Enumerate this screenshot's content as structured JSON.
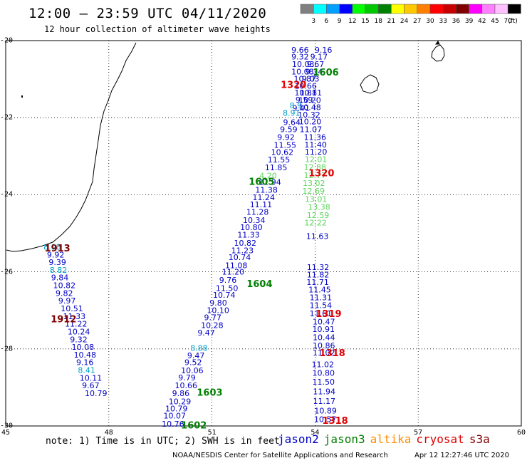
{
  "header": {
    "title": "12:00 – 23:59 UTC 04/11/2020",
    "subtitle": "12 hour collection of altimeter wave heights"
  },
  "colorbar": {
    "unit": "(ft)",
    "bins": [
      {
        "color": "#808080",
        "label": "3"
      },
      {
        "color": "#00ffff",
        "label": "6"
      },
      {
        "color": "#00a0ff",
        "label": "9"
      },
      {
        "color": "#0000ff",
        "label": "12"
      },
      {
        "color": "#00ff00",
        "label": "15"
      },
      {
        "color": "#00c800",
        "label": "18"
      },
      {
        "color": "#008000",
        "label": "21"
      },
      {
        "color": "#ffff00",
        "label": "24"
      },
      {
        "color": "#ffc800",
        "label": "27"
      },
      {
        "color": "#ff8000",
        "label": "30"
      },
      {
        "color": "#ff0000",
        "label": "33"
      },
      {
        "color": "#c80000",
        "label": "36"
      },
      {
        "color": "#800000",
        "label": "39"
      },
      {
        "color": "#ff00ff",
        "label": "42"
      },
      {
        "color": "#ff80ff",
        "label": "45"
      },
      {
        "color": "#ffc0ff",
        "label": "70"
      },
      {
        "color": "#000000",
        "label": ""
      }
    ]
  },
  "map": {
    "lon_range": [
      45,
      60
    ],
    "lat_range": [
      -30,
      -20
    ],
    "x_ticks": [
      "45",
      "48",
      "51",
      "54",
      "57",
      "60"
    ],
    "y_ticks": [
      "-20",
      "-22",
      "-24",
      "-26",
      "-28",
      "-30"
    ],
    "colors": {
      "jason2": "#0000c8",
      "jason3": "#008000",
      "altika": "#ff8c00",
      "cryosat": "#e00000",
      "s3a": "#800000",
      "light_green": "#5cd65c",
      "cyan": "#00a0c8"
    }
  },
  "chart_data": {
    "type": "scatter",
    "title": "12:00 – 23:59 UTC 04/11/2020",
    "subtitle": "12 hour collection of altimeter wave heights",
    "xlabel": "",
    "ylabel": "",
    "xlim": [
      45,
      60
    ],
    "ylim": [
      -30,
      -20
    ],
    "grid": true,
    "tracks": [
      {
        "color": "jason2",
        "points": [
          {
            "lon": 49.54,
            "lat": -29.94,
            "value": "10.76"
          },
          {
            "lon": 49.59,
            "lat": -29.73,
            "value": "10.07"
          },
          {
            "lon": 49.64,
            "lat": -29.55,
            "value": "10.79"
          },
          {
            "lon": 49.74,
            "lat": -29.36,
            "value": "10.29"
          },
          {
            "lon": 49.84,
            "lat": -29.15,
            "value": "9.86"
          },
          {
            "lon": 49.92,
            "lat": -28.95,
            "value": "10.66"
          },
          {
            "lon": 50.02,
            "lat": -28.74,
            "value": "9.79"
          },
          {
            "lon": 50.1,
            "lat": -28.56,
            "value": "10.06"
          },
          {
            "lon": 50.2,
            "lat": -28.35,
            "value": "9.52"
          },
          {
            "lon": 50.28,
            "lat": -28.17,
            "value": "9.47"
          },
          {
            "lon": 50.58,
            "lat": -27.58,
            "value": "9.47"
          },
          {
            "lon": 50.68,
            "lat": -27.38,
            "value": "10.28"
          },
          {
            "lon": 50.77,
            "lat": -27.18,
            "value": "9.77"
          },
          {
            "lon": 50.85,
            "lat": -27.0,
            "value": "10.10"
          },
          {
            "lon": 50.93,
            "lat": -26.8,
            "value": "9.80"
          },
          {
            "lon": 51.03,
            "lat": -26.6,
            "value": "10.74"
          },
          {
            "lon": 51.11,
            "lat": -26.42,
            "value": "11.50"
          },
          {
            "lon": 51.21,
            "lat": -26.21,
            "value": "9.76"
          },
          {
            "lon": 51.29,
            "lat": -26.0,
            "value": "11.20"
          },
          {
            "lon": 51.38,
            "lat": -25.83,
            "value": "11.08"
          },
          {
            "lon": 51.48,
            "lat": -25.62,
            "value": "10.74"
          },
          {
            "lon": 51.56,
            "lat": -25.44,
            "value": "11.23"
          },
          {
            "lon": 51.64,
            "lat": -25.25,
            "value": "10.82"
          },
          {
            "lon": 51.74,
            "lat": -25.04,
            "value": "11.33"
          },
          {
            "lon": 51.82,
            "lat": -24.84,
            "value": "10.80"
          },
          {
            "lon": 51.9,
            "lat": -24.66,
            "value": "10.34"
          },
          {
            "lon": 52.0,
            "lat": -24.45,
            "value": "11.28"
          },
          {
            "lon": 52.1,
            "lat": -24.25,
            "value": "11.11"
          },
          {
            "lon": 52.18,
            "lat": -24.07,
            "value": "11.24"
          },
          {
            "lon": 52.26,
            "lat": -23.87,
            "value": "11.38"
          },
          {
            "lon": 52.36,
            "lat": -23.67,
            "value": "11.94"
          },
          {
            "lon": 52.54,
            "lat": -23.29,
            "value": "11.85"
          },
          {
            "lon": 52.62,
            "lat": -23.09,
            "value": "11.55"
          },
          {
            "lon": 52.72,
            "lat": -22.89,
            "value": "10.62"
          },
          {
            "lon": 52.8,
            "lat": -22.71,
            "value": "11.55"
          },
          {
            "lon": 52.9,
            "lat": -22.5,
            "value": "9.92"
          },
          {
            "lon": 52.98,
            "lat": -22.3,
            "value": "9.59"
          },
          {
            "lon": 53.07,
            "lat": -22.12,
            "value": "9.64"
          },
          {
            "lon": 53.34,
            "lat": -21.75,
            "value": "9.41"
          },
          {
            "lon": 53.43,
            "lat": -21.53,
            "value": "9.59"
          },
          {
            "lon": 53.4,
            "lat": -21.35,
            "value": "10.81"
          },
          {
            "lon": 53.4,
            "lat": -21.17,
            "value": "10.66"
          },
          {
            "lon": 53.38,
            "lat": -20.99,
            "value": "10.87"
          },
          {
            "lon": 53.31,
            "lat": -20.8,
            "value": "10.08"
          },
          {
            "lon": 53.33,
            "lat": -20.61,
            "value": "10.03"
          },
          {
            "lon": 53.31,
            "lat": -20.42,
            "value": "9.32"
          },
          {
            "lon": 53.31,
            "lat": -20.24,
            "value": "9.66"
          }
        ]
      },
      {
        "color": "cyan",
        "points": [
          {
            "lon": 50.37,
            "lat": -27.98,
            "value": "8.88"
          },
          {
            "lon": 53.06,
            "lat": -21.88,
            "value": "8.91"
          },
          {
            "lon": 53.26,
            "lat": -21.68,
            "value": "8.9"
          }
        ]
      },
      {
        "color": "jason2",
        "points": [
          {
            "lon": 53.99,
            "lat": -20.24,
            "value": "9.16"
          },
          {
            "lon": 53.86,
            "lat": -20.42,
            "value": "9.17"
          },
          {
            "lon": 53.76,
            "lat": -20.61,
            "value": "9.67"
          },
          {
            "lon": 53.72,
            "lat": -20.8,
            "value": "9.34"
          },
          {
            "lon": 53.62,
            "lat": -20.99,
            "value": "9.03"
          },
          {
            "lon": 53.55,
            "lat": -21.35,
            "value": "10.81"
          },
          {
            "lon": 53.52,
            "lat": -21.54,
            "value": "10.20"
          },
          {
            "lon": 53.52,
            "lat": -21.73,
            "value": "10.48"
          },
          {
            "lon": 53.5,
            "lat": -21.92,
            "value": "10.32"
          },
          {
            "lon": 53.53,
            "lat": -22.1,
            "value": "10.20"
          },
          {
            "lon": 53.55,
            "lat": -22.3,
            "value": "11.07"
          },
          {
            "lon": 53.67,
            "lat": -22.5,
            "value": "11.36"
          },
          {
            "lon": 53.69,
            "lat": -22.7,
            "value": "11.40"
          },
          {
            "lon": 53.7,
            "lat": -22.88,
            "value": "11.20"
          },
          {
            "lon": 53.74,
            "lat": -25.07,
            "value": "11.63"
          },
          {
            "lon": 53.76,
            "lat": -25.88,
            "value": "11.32"
          },
          {
            "lon": 53.76,
            "lat": -26.07,
            "value": "11.82"
          },
          {
            "lon": 53.75,
            "lat": -26.27,
            "value": "11.71"
          },
          {
            "lon": 53.81,
            "lat": -26.46,
            "value": "11.45"
          },
          {
            "lon": 53.84,
            "lat": -26.66,
            "value": "11.31"
          },
          {
            "lon": 53.84,
            "lat": -26.87,
            "value": "11.54"
          },
          {
            "lon": 53.84,
            "lat": -27.08,
            "value": "11.61"
          },
          {
            "lon": 53.93,
            "lat": -27.29,
            "value": "10.47"
          },
          {
            "lon": 53.92,
            "lat": -27.49,
            "value": "10.91"
          },
          {
            "lon": 53.93,
            "lat": -27.7,
            "value": "10.44"
          },
          {
            "lon": 53.93,
            "lat": -27.91,
            "value": "10.86"
          },
          {
            "lon": 53.93,
            "lat": -28.1,
            "value": "11.02"
          },
          {
            "lon": 53.9,
            "lat": -28.4,
            "value": "11.02"
          },
          {
            "lon": 53.92,
            "lat": -28.62,
            "value": "10.80"
          },
          {
            "lon": 53.92,
            "lat": -28.85,
            "value": "11.50"
          },
          {
            "lon": 53.94,
            "lat": -29.1,
            "value": "11.94"
          },
          {
            "lon": 53.94,
            "lat": -29.35,
            "value": "11.17"
          },
          {
            "lon": 53.98,
            "lat": -29.6,
            "value": "10.89"
          },
          {
            "lon": 53.97,
            "lat": -29.82,
            "value": "10.57"
          }
        ]
      },
      {
        "color": "light_green",
        "points": [
          {
            "lon": 52.38,
            "lat": -23.5,
            "value": "4.20"
          },
          {
            "lon": 53.7,
            "lat": -23.08,
            "value": "12.01"
          },
          {
            "lon": 53.67,
            "lat": -23.28,
            "value": "12.88"
          },
          {
            "lon": 53.67,
            "lat": -23.49,
            "value": "12.77"
          },
          {
            "lon": 53.64,
            "lat": -23.7,
            "value": "13.02"
          },
          {
            "lon": 53.63,
            "lat": -23.9,
            "value": "12.69"
          },
          {
            "lon": 53.7,
            "lat": -24.11,
            "value": "13.01"
          },
          {
            "lon": 53.79,
            "lat": -24.32,
            "value": "13.38"
          },
          {
            "lon": 53.76,
            "lat": -24.53,
            "value": "12.59"
          },
          {
            "lon": 53.69,
            "lat": -24.72,
            "value": "12.22"
          }
        ]
      },
      {
        "color": "jason2",
        "points": [
          {
            "lon": 46.2,
            "lat": -25.55,
            "value": "9.92"
          },
          {
            "lon": 46.25,
            "lat": -25.75,
            "value": "9.39"
          },
          {
            "lon": 46.32,
            "lat": -26.15,
            "value": "9.84"
          },
          {
            "lon": 46.38,
            "lat": -26.35,
            "value": "10.82"
          },
          {
            "lon": 46.45,
            "lat": -26.55,
            "value": "9.82"
          },
          {
            "lon": 46.53,
            "lat": -26.75,
            "value": "9.97"
          },
          {
            "lon": 46.6,
            "lat": -26.95,
            "value": "10.51"
          },
          {
            "lon": 46.67,
            "lat": -27.15,
            "value": "11.33"
          },
          {
            "lon": 46.72,
            "lat": -27.35,
            "value": "11.22"
          },
          {
            "lon": 46.8,
            "lat": -27.55,
            "value": "10.24"
          },
          {
            "lon": 46.87,
            "lat": -27.75,
            "value": "9.32"
          },
          {
            "lon": 46.92,
            "lat": -27.95,
            "value": "10.08"
          },
          {
            "lon": 46.98,
            "lat": -28.15,
            "value": "10.48"
          },
          {
            "lon": 47.05,
            "lat": -28.35,
            "value": "9.16"
          },
          {
            "lon": 47.15,
            "lat": -28.75,
            "value": "10.11"
          },
          {
            "lon": 47.22,
            "lat": -28.95,
            "value": "9.67"
          },
          {
            "lon": 47.3,
            "lat": -29.15,
            "value": "10.79"
          }
        ]
      },
      {
        "color": "cyan",
        "points": [
          {
            "lon": 46.1,
            "lat": -25.35,
            "value": "8.08"
          },
          {
            "lon": 46.28,
            "lat": -25.95,
            "value": "8.82"
          },
          {
            "lon": 47.1,
            "lat": -28.55,
            "value": "8.41"
          }
        ]
      }
    ],
    "time_labels": [
      {
        "lon": 53.94,
        "lat": -20.81,
        "text": "1606",
        "color": "jason3"
      },
      {
        "lon": 53.0,
        "lat": -21.14,
        "text": "1320",
        "color": "cryosat"
      },
      {
        "lon": 53.81,
        "lat": -23.43,
        "text": "1320",
        "color": "cryosat"
      },
      {
        "lon": 52.07,
        "lat": -23.65,
        "text": "1605",
        "color": "jason3"
      },
      {
        "lon": 52.01,
        "lat": -26.3,
        "text": "1604",
        "color": "jason3"
      },
      {
        "lon": 54.02,
        "lat": -27.08,
        "text": "1319",
        "color": "cryosat"
      },
      {
        "lon": 54.13,
        "lat": -28.1,
        "text": "1318",
        "color": "cryosat"
      },
      {
        "lon": 50.56,
        "lat": -29.12,
        "text": "1603",
        "color": "jason3"
      },
      {
        "lon": 54.21,
        "lat": -29.85,
        "text": "1318",
        "color": "cryosat"
      },
      {
        "lon": 50.1,
        "lat": -29.97,
        "text": "1602",
        "color": "jason3"
      },
      {
        "lon": 46.13,
        "lat": -25.38,
        "text": "1913",
        "color": "s3a"
      },
      {
        "lon": 46.31,
        "lat": -27.22,
        "text": "1912",
        "color": "s3a"
      }
    ]
  },
  "footer": {
    "note": "note: 1) Time is in UTC; 2) SWH is in feet",
    "legend": [
      {
        "label": "jason2",
        "color": "#0000c8"
      },
      {
        "label": "jason3",
        "color": "#008000"
      },
      {
        "label": "altika",
        "color": "#ff8c00"
      },
      {
        "label": "cryosat",
        "color": "#e00000"
      },
      {
        "label": "s3a",
        "color": "#800000"
      }
    ],
    "credit": "NOAA/NESDIS Center for Satellite Applications and Research",
    "timestamp": "Apr 12 12:27:46 UTC 2020"
  }
}
